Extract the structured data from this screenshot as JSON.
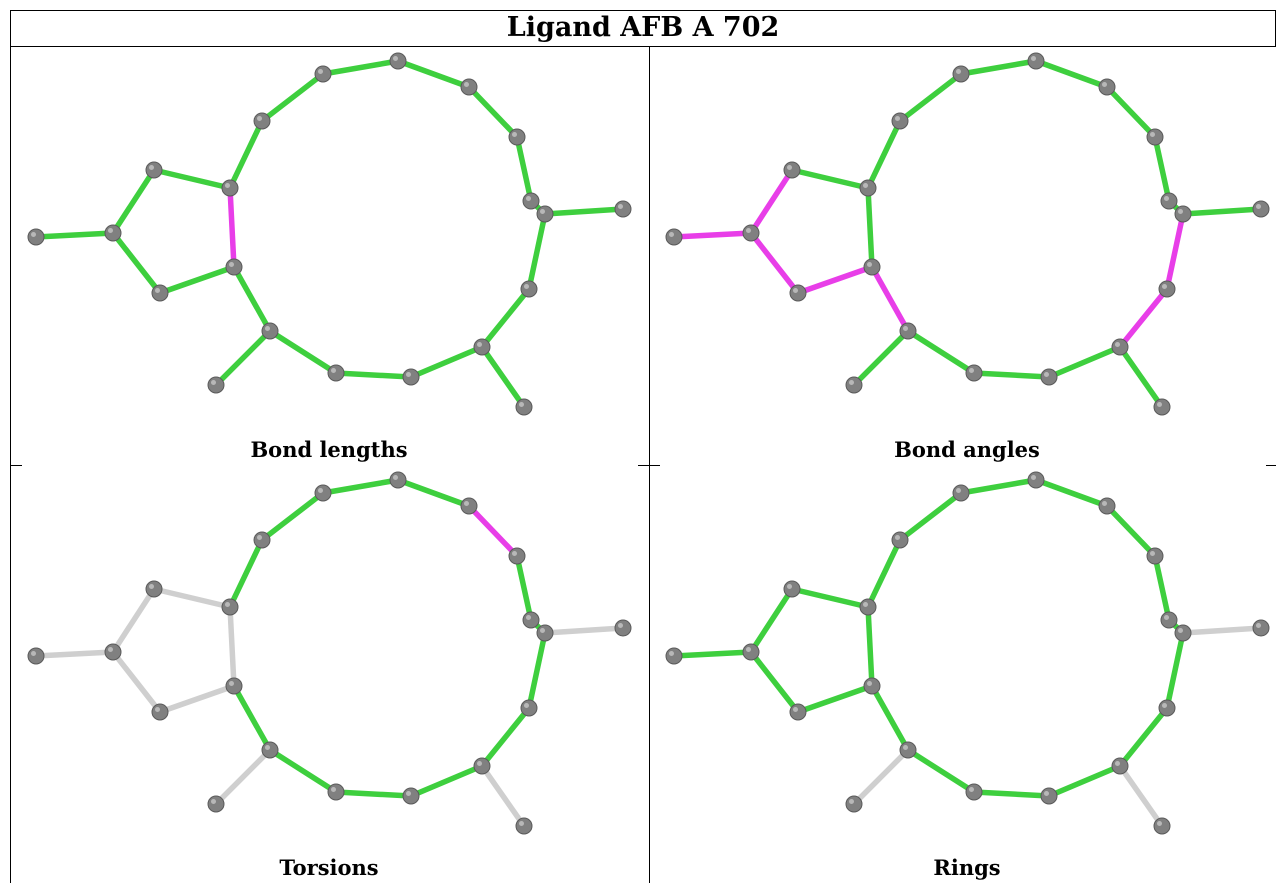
{
  "title": "Ligand AFB A 702",
  "colors": {
    "ok_bond": "#3ecf3e",
    "outlier_bond": "#e83ee8",
    "unassessed_bond": "#cfcfcf",
    "atom": "#808080"
  },
  "panels": [
    {
      "caption": "Bond lengths",
      "outlier_bonds": [
        "c4-c5"
      ],
      "unassessed_bonds": []
    },
    {
      "caption": "Bond angles",
      "outlier_bonds": [
        "c5-p4",
        "p4-p1",
        "p1-p2",
        "p1-m",
        "p4-p3",
        "p3-c5",
        "c5-c6",
        "r9-r10",
        "r10-r11"
      ],
      "unassessed_bonds": []
    },
    {
      "caption": "Torsions",
      "outlier_bonds": [
        "r5-r6"
      ],
      "unassessed_bonds": [
        "c4-p2",
        "p2-p1",
        "p1-p3",
        "p3-c5",
        "p1-m",
        "c4-c5",
        "r7-sub1",
        "r12-sub3",
        "c6-sub2"
      ]
    },
    {
      "caption": "Rings",
      "outlier_bonds": [],
      "unassessed_bonds": [
        "r7-sub1",
        "r12-sub3",
        "c6-sub2"
      ]
    }
  ]
}
